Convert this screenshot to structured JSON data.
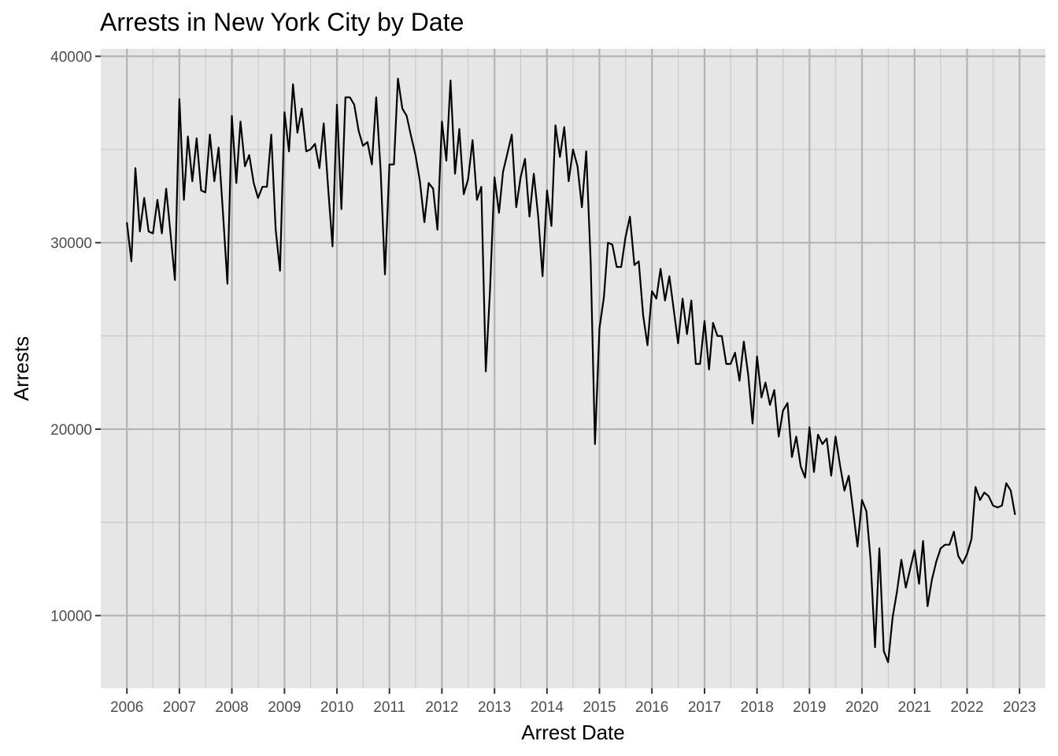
{
  "colors": {
    "panel_background": "#e6e6e6",
    "grid_major": "#b3b3b3",
    "grid_minor": "#c8c8c8",
    "line": "#000000",
    "tick_text": "#4d4d4d"
  },
  "chart_data": {
    "type": "line",
    "title": "Arrests in New York City by Date",
    "xlabel": "Arrest Date",
    "ylabel": "Arrests",
    "x_axis": "date",
    "xlim": [
      "2005-07-03",
      "2023-06-30"
    ],
    "ylim": [
      6100,
      40400
    ],
    "x_ticks": [
      "2006",
      "2007",
      "2008",
      "2009",
      "2010",
      "2011",
      "2012",
      "2013",
      "2014",
      "2015",
      "2016",
      "2017",
      "2018",
      "2019",
      "2020",
      "2021",
      "2022",
      "2023"
    ],
    "y_ticks": [
      "10000",
      "20000",
      "30000",
      "40000"
    ],
    "grid": true,
    "legend": "none",
    "series": [
      {
        "x": [
          "2006-01",
          "2006-02",
          "2006-03",
          "2006-04",
          "2006-05",
          "2006-06",
          "2006-07",
          "2006-08",
          "2006-09",
          "2006-10",
          "2006-11",
          "2006-12",
          "2007-01",
          "2007-02",
          "2007-03",
          "2007-04",
          "2007-05",
          "2007-06",
          "2007-07",
          "2007-08",
          "2007-09",
          "2007-10",
          "2007-11",
          "2007-12",
          "2008-01",
          "2008-02",
          "2008-03",
          "2008-04",
          "2008-05",
          "2008-06",
          "2008-07",
          "2008-08",
          "2008-09",
          "2008-10",
          "2008-11",
          "2008-12",
          "2009-01",
          "2009-02",
          "2009-03",
          "2009-04",
          "2009-05",
          "2009-06",
          "2009-07",
          "2009-08",
          "2009-09",
          "2009-10",
          "2009-11",
          "2009-12",
          "2010-01",
          "2010-02",
          "2010-03",
          "2010-04",
          "2010-05",
          "2010-06",
          "2010-07",
          "2010-08",
          "2010-09",
          "2010-10",
          "2010-11",
          "2010-12",
          "2011-01",
          "2011-02",
          "2011-03",
          "2011-04",
          "2011-05",
          "2011-06",
          "2011-07",
          "2011-08",
          "2011-09",
          "2011-10",
          "2011-11",
          "2011-12",
          "2012-01",
          "2012-02",
          "2012-03",
          "2012-04",
          "2012-05",
          "2012-06",
          "2012-07",
          "2012-08",
          "2012-09",
          "2012-10",
          "2012-11",
          "2012-12",
          "2013-01",
          "2013-02",
          "2013-03",
          "2013-04",
          "2013-05",
          "2013-06",
          "2013-07",
          "2013-08",
          "2013-09",
          "2013-10",
          "2013-11",
          "2013-12",
          "2014-01",
          "2014-02",
          "2014-03",
          "2014-04",
          "2014-05",
          "2014-06",
          "2014-07",
          "2014-08",
          "2014-09",
          "2014-10",
          "2014-11",
          "2014-12",
          "2015-01",
          "2015-02",
          "2015-03",
          "2015-04",
          "2015-05",
          "2015-06",
          "2015-07",
          "2015-08",
          "2015-09",
          "2015-10",
          "2015-11",
          "2015-12",
          "2016-01",
          "2016-02",
          "2016-03",
          "2016-04",
          "2016-05",
          "2016-06",
          "2016-07",
          "2016-08",
          "2016-09",
          "2016-10",
          "2016-11",
          "2016-12",
          "2017-01",
          "2017-02",
          "2017-03",
          "2017-04",
          "2017-05",
          "2017-06",
          "2017-07",
          "2017-08",
          "2017-09",
          "2017-10",
          "2017-11",
          "2017-12",
          "2018-01",
          "2018-02",
          "2018-03",
          "2018-04",
          "2018-05",
          "2018-06",
          "2018-07",
          "2018-08",
          "2018-09",
          "2018-10",
          "2018-11",
          "2018-12",
          "2019-01",
          "2019-02",
          "2019-03",
          "2019-04",
          "2019-05",
          "2019-06",
          "2019-07",
          "2019-08",
          "2019-09",
          "2019-10",
          "2019-11",
          "2019-12",
          "2020-01",
          "2020-02",
          "2020-03",
          "2020-04",
          "2020-05",
          "2020-06",
          "2020-07",
          "2020-08",
          "2020-09",
          "2020-10",
          "2020-11",
          "2020-12",
          "2021-01",
          "2021-02",
          "2021-03",
          "2021-04",
          "2021-05",
          "2021-06",
          "2021-07",
          "2021-08",
          "2021-09",
          "2021-10",
          "2021-11",
          "2021-12",
          "2022-01",
          "2022-02",
          "2022-03",
          "2022-04",
          "2022-05",
          "2022-06",
          "2022-07",
          "2022-08",
          "2022-09",
          "2022-10",
          "2022-11",
          "2022-12"
        ],
        "values": [
          31100,
          29000,
          34000,
          30600,
          32400,
          30600,
          30500,
          32300,
          30500,
          32900,
          30400,
          28000,
          37700,
          32300,
          35700,
          33300,
          35600,
          32800,
          32700,
          35800,
          33300,
          35100,
          31500,
          27800,
          36800,
          33200,
          36500,
          34100,
          34700,
          33200,
          32400,
          33000,
          33000,
          35800,
          30700,
          28500,
          37000,
          34900,
          38500,
          35900,
          37200,
          34900,
          35000,
          35300,
          34000,
          36400,
          32900,
          29800,
          37400,
          31800,
          37800,
          37800,
          37400,
          36000,
          35200,
          35400,
          34200,
          37800,
          33800,
          28300,
          34200,
          34200,
          38800,
          37200,
          36800,
          35700,
          34700,
          33300,
          31100,
          33200,
          32900,
          30700,
          36500,
          34400,
          38700,
          33700,
          36100,
          32600,
          33400,
          35500,
          32300,
          33000,
          23100,
          27500,
          33500,
          31600,
          33800,
          34800,
          35800,
          31900,
          33500,
          34500,
          31400,
          33700,
          31400,
          28200,
          32800,
          30900,
          36300,
          34600,
          36200,
          33300,
          35000,
          34100,
          31900,
          34900,
          28900,
          19200,
          25400,
          27100,
          30000,
          29900,
          28700,
          28700,
          30300,
          31400,
          28800,
          29000,
          26100,
          24500,
          27400,
          27000,
          28600,
          26900,
          28200,
          26400,
          24600,
          27000,
          25100,
          26900,
          23500,
          23500,
          25800,
          23200,
          25700,
          25000,
          25000,
          23500,
          23500,
          24100,
          22600,
          24700,
          22900,
          20300,
          23900,
          21700,
          22500,
          21300,
          22100,
          19600,
          21000,
          21400,
          18500,
          19600,
          18000,
          17400,
          20100,
          17700,
          19700,
          19200,
          19500,
          17500,
          19600,
          18100,
          16700,
          17500,
          15600,
          13700,
          16200,
          15600,
          13000,
          8300,
          13600,
          8100,
          7500,
          9900,
          11300,
          13000,
          11500,
          12500,
          13500,
          11700,
          14000,
          10500,
          11900,
          12900,
          13600,
          13800,
          13800,
          14500,
          13200,
          12800,
          13300,
          14100,
          16900,
          16200,
          16600,
          16400,
          15900,
          15800,
          15900,
          17100,
          16700,
          15400
        ]
      }
    ]
  }
}
